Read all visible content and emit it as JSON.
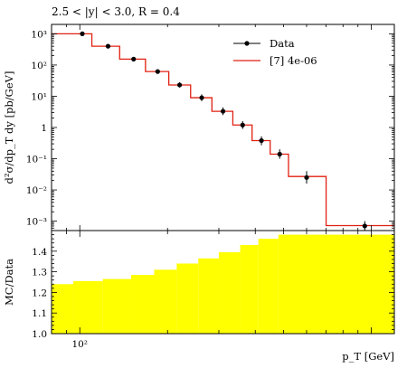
{
  "chart_data": {
    "type": "line",
    "title": "2.5 < |y| < 3.0, R = 0.4",
    "main": {
      "ylabel": "d²σ/dp_T dy [pb/GeV]",
      "yscale": "log",
      "ylim": [
        0.0005,
        2000
      ],
      "yticks": [
        {
          "value": 1000,
          "label": "10³"
        },
        {
          "value": 100,
          "label": "10²"
        },
        {
          "value": 10,
          "label": "10¹"
        },
        {
          "value": 1,
          "label": "1"
        },
        {
          "value": 0.1,
          "label": "10⁻¹"
        },
        {
          "value": 0.01,
          "label": "10⁻²"
        },
        {
          "value": 0.001,
          "label": "10⁻³"
        }
      ],
      "legend_position": "top-right",
      "series": [
        {
          "name": "Data",
          "kind": "points",
          "color": "#000000",
          "points": [
            {
              "x": 102,
              "y": 1000,
              "lo": 880,
              "hi": 1140
            },
            {
              "x": 125,
              "y": 400,
              "lo": 355,
              "hi": 450
            },
            {
              "x": 153,
              "y": 155,
              "lo": 136,
              "hi": 177
            },
            {
              "x": 185,
              "y": 62,
              "lo": 53,
              "hi": 72
            },
            {
              "x": 220,
              "y": 23,
              "lo": 19,
              "hi": 28
            },
            {
              "x": 262,
              "y": 9,
              "lo": 7.0,
              "hi": 11.5
            },
            {
              "x": 310,
              "y": 3.3,
              "lo": 2.5,
              "hi": 4.4
            },
            {
              "x": 362,
              "y": 1.2,
              "lo": 0.9,
              "hi": 1.6
            },
            {
              "x": 420,
              "y": 0.38,
              "lo": 0.27,
              "hi": 0.52
            },
            {
              "x": 485,
              "y": 0.14,
              "lo": 0.1,
              "hi": 0.2
            },
            {
              "x": 600,
              "y": 0.025,
              "lo": 0.016,
              "hi": 0.04
            },
            {
              "x": 950,
              "y": 0.0007,
              "lo": 0.0005,
              "hi": 0.001
            }
          ]
        },
        {
          "name": "[7] 4e-06",
          "kind": "histogram",
          "color": "#e02010",
          "bins": [
            {
              "x0": 80,
              "x1": 110,
              "y": 1000
            },
            {
              "x0": 110,
              "x1": 137,
              "y": 400
            },
            {
              "x0": 137,
              "x1": 168,
              "y": 155
            },
            {
              "x0": 168,
              "x1": 202,
              "y": 62
            },
            {
              "x0": 202,
              "x1": 240,
              "y": 23
            },
            {
              "x0": 240,
              "x1": 284,
              "y": 9
            },
            {
              "x0": 284,
              "x1": 335,
              "y": 3.3
            },
            {
              "x0": 335,
              "x1": 390,
              "y": 1.2
            },
            {
              "x0": 390,
              "x1": 450,
              "y": 0.38
            },
            {
              "x0": 450,
              "x1": 520,
              "y": 0.14
            },
            {
              "x0": 520,
              "x1": 700,
              "y": 0.027
            },
            {
              "x0": 700,
              "x1": 1200,
              "y": 0.00072
            }
          ]
        }
      ]
    },
    "ratio": {
      "ylabel": "MC/Data",
      "ylim": [
        1.0,
        1.5
      ],
      "yticks": [
        {
          "value": 1.0,
          "label": "1.0"
        },
        {
          "value": 1.1,
          "label": "1.1"
        },
        {
          "value": 1.2,
          "label": "1.2"
        },
        {
          "value": 1.3,
          "label": "1.3"
        },
        {
          "value": 1.4,
          "label": "1.4"
        }
      ],
      "band_color": "#ffff00",
      "band": [
        {
          "x0": 80,
          "x1": 95,
          "y": 1.24
        },
        {
          "x0": 95,
          "x1": 120,
          "y": 1.255
        },
        {
          "x0": 120,
          "x1": 150,
          "y": 1.265
        },
        {
          "x0": 150,
          "x1": 180,
          "y": 1.285
        },
        {
          "x0": 180,
          "x1": 215,
          "y": 1.31
        },
        {
          "x0": 215,
          "x1": 255,
          "y": 1.34
        },
        {
          "x0": 255,
          "x1": 300,
          "y": 1.365
        },
        {
          "x0": 300,
          "x1": 355,
          "y": 1.395
        },
        {
          "x0": 355,
          "x1": 410,
          "y": 1.43
        },
        {
          "x0": 410,
          "x1": 480,
          "y": 1.46
        },
        {
          "x0": 480,
          "x1": 1200,
          "y": 1.48
        }
      ]
    },
    "x": {
      "label": "p_T [GeV]",
      "scale": "log",
      "xlim": [
        80,
        1200
      ],
      "major_ticks": [
        {
          "value": 100,
          "label": "10²"
        }
      ]
    }
  }
}
